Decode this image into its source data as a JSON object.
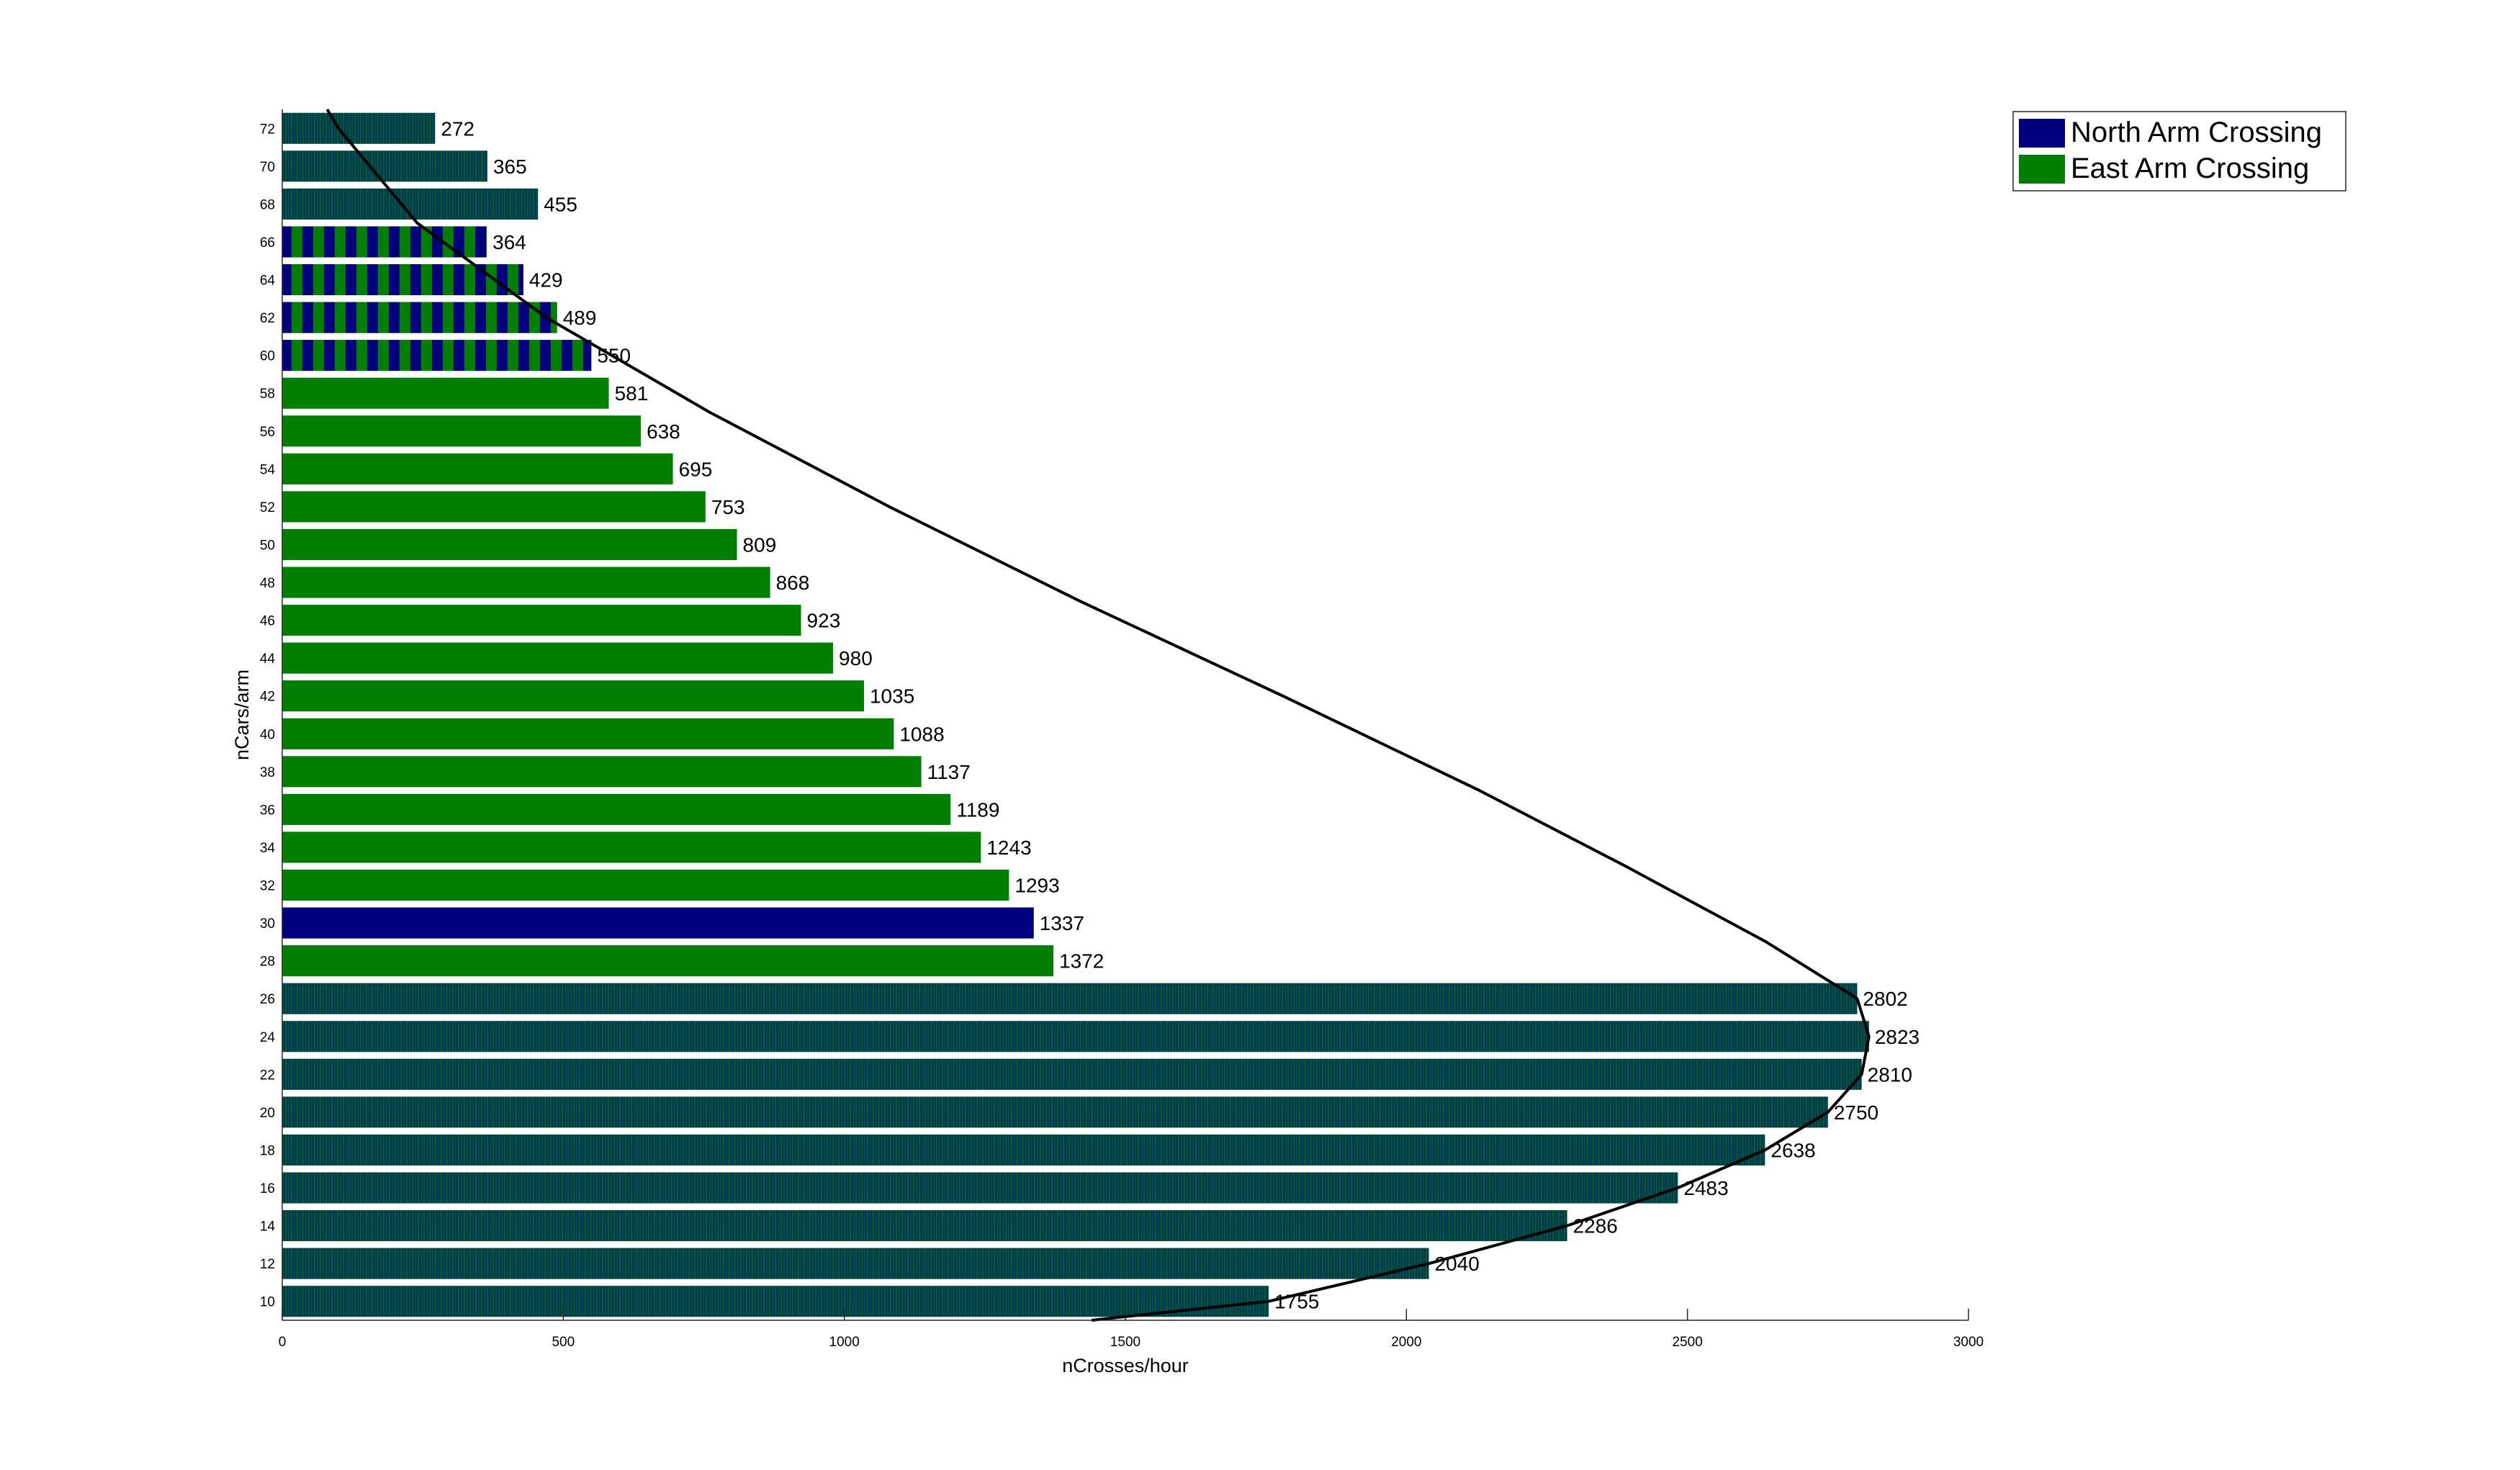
{
  "chart_data": {
    "type": "bar",
    "orientation": "horizontal",
    "xlabel": "nCrosses/hour",
    "ylabel": "nCars/arm",
    "xlim": [
      0,
      3000
    ],
    "x_ticks": [
      0,
      500,
      1000,
      1500,
      2000,
      2500,
      3000
    ],
    "categories": [
      10,
      12,
      14,
      16,
      18,
      20,
      22,
      24,
      26,
      28,
      30,
      32,
      34,
      36,
      38,
      40,
      42,
      44,
      46,
      48,
      50,
      52,
      54,
      56,
      58,
      60,
      62,
      64,
      66,
      68,
      70,
      72
    ],
    "values": [
      1755,
      2040,
      2286,
      2483,
      2638,
      2750,
      2810,
      2823,
      2802,
      1372,
      1337,
      1293,
      1243,
      1189,
      1137,
      1088,
      1035,
      980,
      923,
      868,
      809,
      753,
      695,
      638,
      581,
      550,
      489,
      429,
      364,
      455,
      365,
      272
    ],
    "bar_fill": [
      "mixed",
      "mixed",
      "mixed",
      "mixed",
      "mixed",
      "mixed",
      "mixed",
      "mixed",
      "mixed",
      "east",
      "north",
      "east",
      "east",
      "east",
      "east",
      "east",
      "east",
      "east",
      "east",
      "east",
      "east",
      "east",
      "east",
      "east",
      "east",
      "striped",
      "striped",
      "striped",
      "striped",
      "mixed",
      "mixed",
      "mixed"
    ],
    "legend": {
      "placement": "top-right",
      "entries": [
        {
          "label": "North Arm Crossing",
          "color": "#00007f"
        },
        {
          "label": "East Arm Crossing",
          "color": "#007f00"
        }
      ]
    },
    "mixed_color": "#003c3c",
    "curve": {
      "description_points": [
        [
          1440,
          9
        ],
        [
          1755,
          10
        ],
        [
          2040,
          12
        ],
        [
          2286,
          14
        ],
        [
          2483,
          16
        ],
        [
          2638,
          18
        ],
        [
          2750,
          20
        ],
        [
          2810,
          22
        ],
        [
          2823,
          24
        ],
        [
          2802,
          26
        ],
        [
          2640,
          29
        ],
        [
          2390,
          33
        ],
        [
          2130,
          37
        ],
        [
          1780,
          42
        ],
        [
          1420,
          47
        ],
        [
          1080,
          52
        ],
        [
          760,
          57
        ],
        [
          470,
          62
        ],
        [
          240,
          67
        ],
        [
          100,
          72
        ],
        [
          80,
          73
        ]
      ]
    }
  }
}
